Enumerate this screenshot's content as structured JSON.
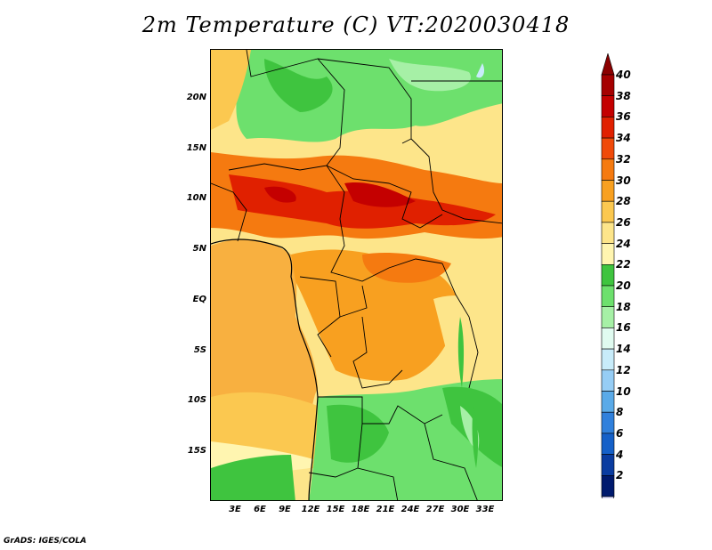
{
  "title": "2m Temperature (C) VT:2020030418",
  "credit": "GrADS: IGES/COLA",
  "chart_data": {
    "type": "heatmap",
    "variable": "2m Temperature",
    "units": "C",
    "valid_time": "2020030418",
    "lon_range": [
      0,
      35
    ],
    "lat_range": [
      -20,
      25
    ],
    "lat_ticks": [
      "20N",
      "15N",
      "10N",
      "5N",
      "EQ",
      "5S",
      "10S",
      "15S"
    ],
    "lon_ticks": [
      "3E",
      "6E",
      "9E",
      "12E",
      "15E",
      "18E",
      "21E",
      "24E",
      "27E",
      "30E",
      "33E"
    ],
    "colorbar": {
      "labels": [
        "40",
        "38",
        "36",
        "34",
        "32",
        "30",
        "28",
        "26",
        "24",
        "22",
        "20",
        "18",
        "16",
        "14",
        "12",
        "10",
        "8",
        "6",
        "4",
        "2"
      ],
      "colors": [
        "#a50000",
        "#c40000",
        "#e02000",
        "#f04a0a",
        "#f57a10",
        "#f8a020",
        "#fbc850",
        "#fde58a",
        "#fff5b0",
        "#3fc43f",
        "#6de06d",
        "#a6f0a6",
        "#e0fbf0",
        "#c8ecfa",
        "#96cdf5",
        "#5aaae8",
        "#3080dc",
        "#1560c8",
        "#0a3ca0",
        "#001a6e"
      ],
      "arrow_top": "#8b0000",
      "arrow_bottom": "#d8d8f8"
    }
  }
}
